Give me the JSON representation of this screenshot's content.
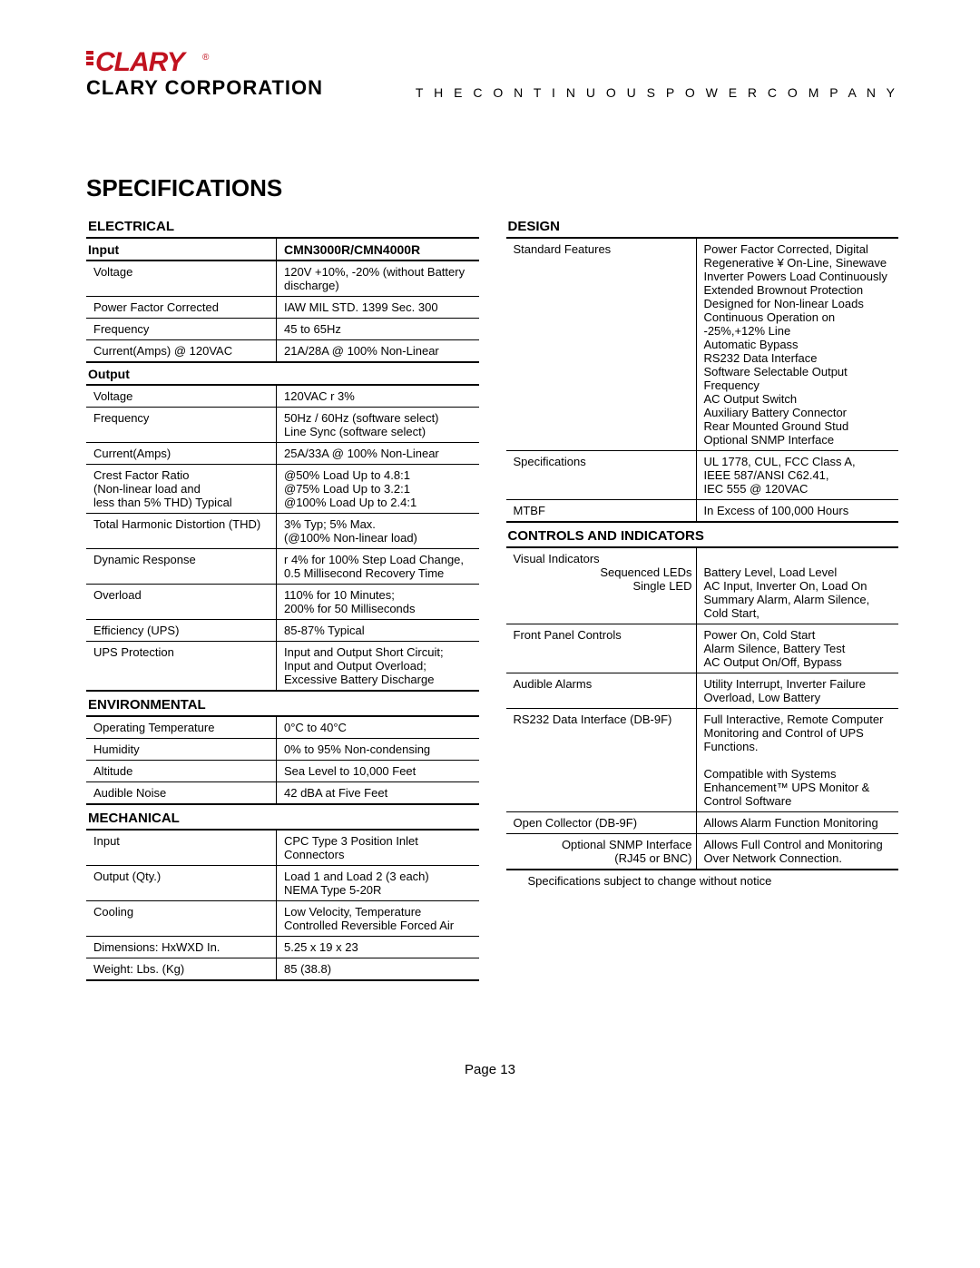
{
  "header": {
    "logo_top": "CLARY",
    "logo_bottom": "CLARY CORPORATION",
    "tagline": "T H E   C O N T I N U O U S   P O W E R   C O M P A N Y"
  },
  "title": "SPECIFICATIONS",
  "colors": {
    "brand_red": "#c1121f",
    "text": "#000000",
    "rule": "#000000"
  },
  "left": {
    "electrical": {
      "header": "ELECTRICAL",
      "input_hdr_left": "Input",
      "input_hdr_right": "CMN3000R/CMN4000R",
      "input_rows": [
        {
          "l": "Voltage",
          "v": "120V  +10%, -20% (without Battery discharge)"
        },
        {
          "l": "Power Factor Corrected",
          "v": "IAW MIL STD. 1399 Sec. 300"
        },
        {
          "l": "Frequency",
          "v": "45 to 65Hz"
        },
        {
          "l": "Current(Amps) @ 120VAC",
          "v": "21A/28A @ 100% Non-Linear"
        }
      ],
      "output_hdr": "Output",
      "output_rows": [
        {
          "l": "Voltage",
          "v": "120VAC  r 3%"
        },
        {
          "l": "Frequency",
          "v": "50Hz / 60Hz (software select)\nLine Sync  (software select)"
        },
        {
          "l": "Current(Amps)",
          "v": "25A/33A @ 100% Non-Linear"
        },
        {
          "l": "Crest Factor Ratio\n(Non-linear load and\nless than 5% THD) Typical",
          "v": "@50% Load      Up to 4.8:1\n@75% Load      Up to 3.2:1\n@100% Load    Up to 2.4:1"
        },
        {
          "l": "Total Harmonic Distortion (THD)",
          "v": "3% Typ; 5% Max.\n(@100% Non-linear load)"
        },
        {
          "l": "Dynamic Response",
          "v": "r 4% for 100% Step Load Change,\n0.5 Millisecond Recovery Time"
        },
        {
          "l": "Overload",
          "v": "110% for 10 Minutes;\n200% for 50 Milliseconds"
        },
        {
          "l": "Efficiency (UPS)",
          "v": "85-87% Typical"
        },
        {
          "l": "UPS Protection",
          "v": "Input and Output Short Circuit;\nInput and Output Overload;\nExcessive Battery Discharge"
        }
      ]
    },
    "environmental": {
      "header": "ENVIRONMENTAL",
      "rows": [
        {
          "l": "Operating Temperature",
          "v": "0°C to 40°C"
        },
        {
          "l": "Humidity",
          "v": "0% to 95% Non-condensing"
        },
        {
          "l": "Altitude",
          "v": "Sea Level to 10,000 Feet"
        },
        {
          "l": "Audible Noise",
          "v": "42 dBA at Five Feet"
        }
      ]
    },
    "mechanical": {
      "header": "MECHANICAL",
      "rows": [
        {
          "l": "Input",
          "v": "CPC Type 3 Position Inlet Connectors"
        },
        {
          "l": "Output (Qty.)",
          "v": "Load 1 and Load 2 (3 each)\nNEMA Type 5-20R"
        },
        {
          "l": "Cooling",
          "v": "Low Velocity, Temperature Controlled Reversible Forced Air"
        },
        {
          "l": "Dimensions: HxWXD In.",
          "v": "5.25 x 19 x 23"
        },
        {
          "l": "Weight: Lbs. (Kg)",
          "v": "85 (38.8)"
        }
      ]
    }
  },
  "right": {
    "design": {
      "header": "DESIGN",
      "rows": [
        {
          "l": "Standard Features",
          "v": "Power Factor Corrected, Digital\n  Regenerative ¥ On-Line, Sinewave\nInverter Powers Load Continuously\nExtended Brownout Protection\nDesigned for Non-linear Loads\nContinuous Operation on\n  -25%,+12% Line\nAutomatic Bypass\nRS232 Data Interface\nSoftware Selectable Output\n  Frequency\nAC Output Switch\nAuxiliary Battery Connector\nRear Mounted Ground Stud\nOptional SNMP Interface"
        },
        {
          "l": "Specifications",
          "v": "UL 1778, CUL, FCC Class A,\nIEEE 587/ANSI C62.41,\nIEC 555 @ 120VAC"
        },
        {
          "l": "MTBF",
          "v": "In Excess of 100,000 Hours"
        }
      ]
    },
    "controls": {
      "header": "CONTROLS AND INDICATORS",
      "row1_l1": "Visual Indicators",
      "row1_l2": "Sequenced LEDs",
      "row1_l3": "Single LED",
      "row1_v2": "Battery Level, Load Level",
      "row1_v3": "AC Input, Inverter On, Load On\nSummary Alarm, Alarm Silence,\nCold Start,",
      "rows": [
        {
          "l": "Front Panel Controls",
          "v": "Power On, Cold Start\nAlarm Silence, Battery Test\nAC Output On/Off, Bypass"
        },
        {
          "l": "Audible Alarms",
          "v": "Utility Interrupt, Inverter Failure\nOverload, Low Battery"
        },
        {
          "l": "RS232 Data Interface  (DB-9F)",
          "v": "Full Interactive, Remote Computer Monitoring and Control of UPS Functions.\n\nCompatible with Systems Enhancement™ UPS Monitor & Control Software"
        },
        {
          "l": "Open Collector (DB-9F)",
          "v": "Allows Alarm Function Monitoring"
        },
        {
          "l": "Optional SNMP Interface\n(RJ45 or BNC)",
          "v": "Allows Full Control and Monitoring Over Network Connection.",
          "right_align_label": true
        }
      ]
    },
    "footnote": "Specifications subject to change without notice"
  },
  "page_number": "Page 13"
}
